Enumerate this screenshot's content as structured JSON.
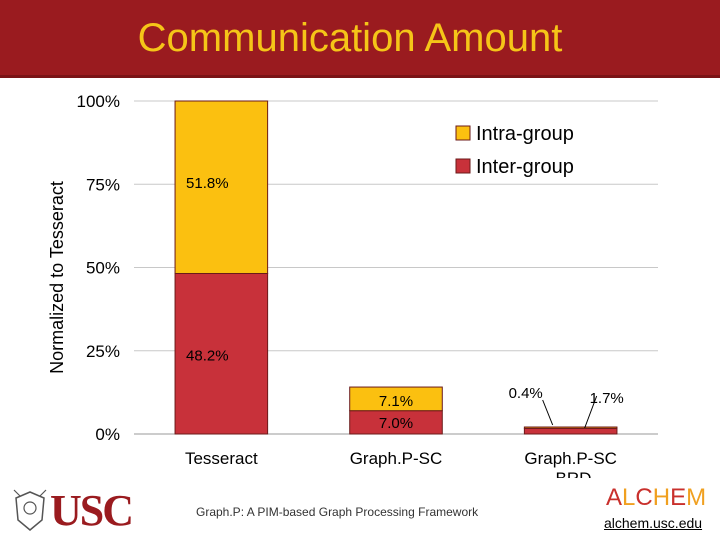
{
  "slide": {
    "title": "Communication Amount",
    "footer": "Graph.P: A PIM-based Graph Processing Framework",
    "usc_logo_text": "USC",
    "alchem_logo_text": "ALCHEM",
    "alchem_url": "alchem.usc.edu"
  },
  "colors": {
    "title_bar": "#9a1b1f",
    "title_text": "#f5c518",
    "intra_group": "#fbc010",
    "inter_group": "#c8313a"
  },
  "chart_data": {
    "type": "bar",
    "stacked": true,
    "ylabel": "Normalized to Tesseract",
    "ylim": [
      0,
      100
    ],
    "yticks": [
      "0%",
      "25%",
      "50%",
      "75%",
      "100%"
    ],
    "grid": true,
    "legend_position": "top-right",
    "categories": [
      [
        "Tesseract"
      ],
      [
        "Graph.P-SC"
      ],
      [
        "Graph.P-SC",
        "-BRD"
      ]
    ],
    "series": [
      {
        "name": "Inter-group",
        "values": [
          48.2,
          7.0,
          1.7
        ],
        "labels": [
          "48.2%",
          "7.0%",
          "1.7%"
        ]
      },
      {
        "name": "Intra-group",
        "values": [
          51.8,
          7.1,
          0.4
        ],
        "labels": [
          "51.8%",
          "7.1%",
          "0.4%"
        ]
      }
    ]
  }
}
